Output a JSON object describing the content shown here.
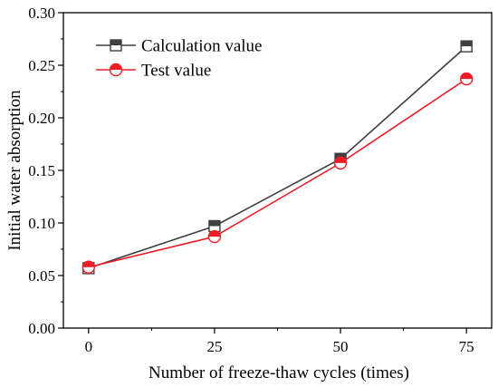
{
  "chart_data": {
    "type": "line",
    "xlabel": "Number of freeze-thaw cycles (times)",
    "ylabel": "Initial water absorption",
    "x": [
      0,
      25,
      50,
      75
    ],
    "xlim": [
      -5,
      80
    ],
    "ylim": [
      0,
      0.3
    ],
    "xticks": [
      "0",
      "25",
      "50",
      "75"
    ],
    "yticks": [
      "0.00",
      "0.05",
      "0.10",
      "0.15",
      "0.20",
      "0.25",
      "0.30"
    ],
    "grid": false,
    "legend_position": "top-left",
    "series": [
      {
        "name": "Calculation value",
        "values": [
          0.057,
          0.097,
          0.161,
          0.268
        ],
        "color": "#3f3f3f",
        "marker": "half-filled-square"
      },
      {
        "name": "Test value",
        "values": [
          0.058,
          0.087,
          0.157,
          0.237
        ],
        "color": "#ee1c25",
        "marker": "half-filled-circle"
      }
    ]
  }
}
